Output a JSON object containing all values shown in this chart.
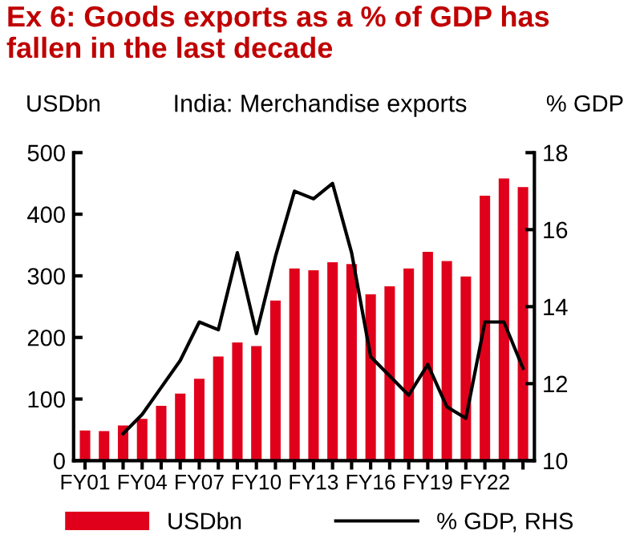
{
  "chart_data": {
    "type": "bar",
    "title": "Ex 6: Goods exports as a % of GDP has\nfallen in the last decade",
    "subtitle": "India: Merchandise exports",
    "ylabel": "USDbn",
    "y2label": "% GDP",
    "categories": [
      "FY01",
      null,
      null,
      "FY04",
      null,
      null,
      "FY07",
      null,
      null,
      "FY10",
      null,
      null,
      "FY13",
      null,
      null,
      "FY16",
      null,
      null,
      "FY19",
      null,
      null,
      "FY22",
      null,
      null
    ],
    "series": [
      {
        "name": "USDbn",
        "color": "#e0001b",
        "values": [
          49,
          48,
          57,
          68,
          89,
          109,
          133,
          169,
          192,
          186,
          260,
          312,
          309,
          322,
          319,
          270,
          283,
          312,
          339,
          324,
          299,
          430,
          458,
          444
        ]
      },
      {
        "name": "% GDP, RHS",
        "type": "line",
        "axis": "y2",
        "color": "#000000",
        "values": [
          null,
          null,
          10.7,
          11.2,
          11.9,
          12.6,
          13.6,
          13.4,
          15.4,
          13.3,
          15.3,
          17.0,
          16.8,
          17.2,
          15.4,
          12.7,
          12.2,
          11.7,
          12.5,
          11.4,
          11.1,
          13.6,
          13.6,
          12.4
        ]
      }
    ],
    "ylim": [
      0,
      500
    ],
    "yticks": [
      0,
      100,
      200,
      300,
      400,
      500
    ],
    "y2lim": [
      10,
      18
    ],
    "y2ticks": [
      10,
      12,
      14,
      16,
      18
    ],
    "grid": false,
    "legend": "bottom",
    "marker": "none",
    "line_style": "solid"
  }
}
